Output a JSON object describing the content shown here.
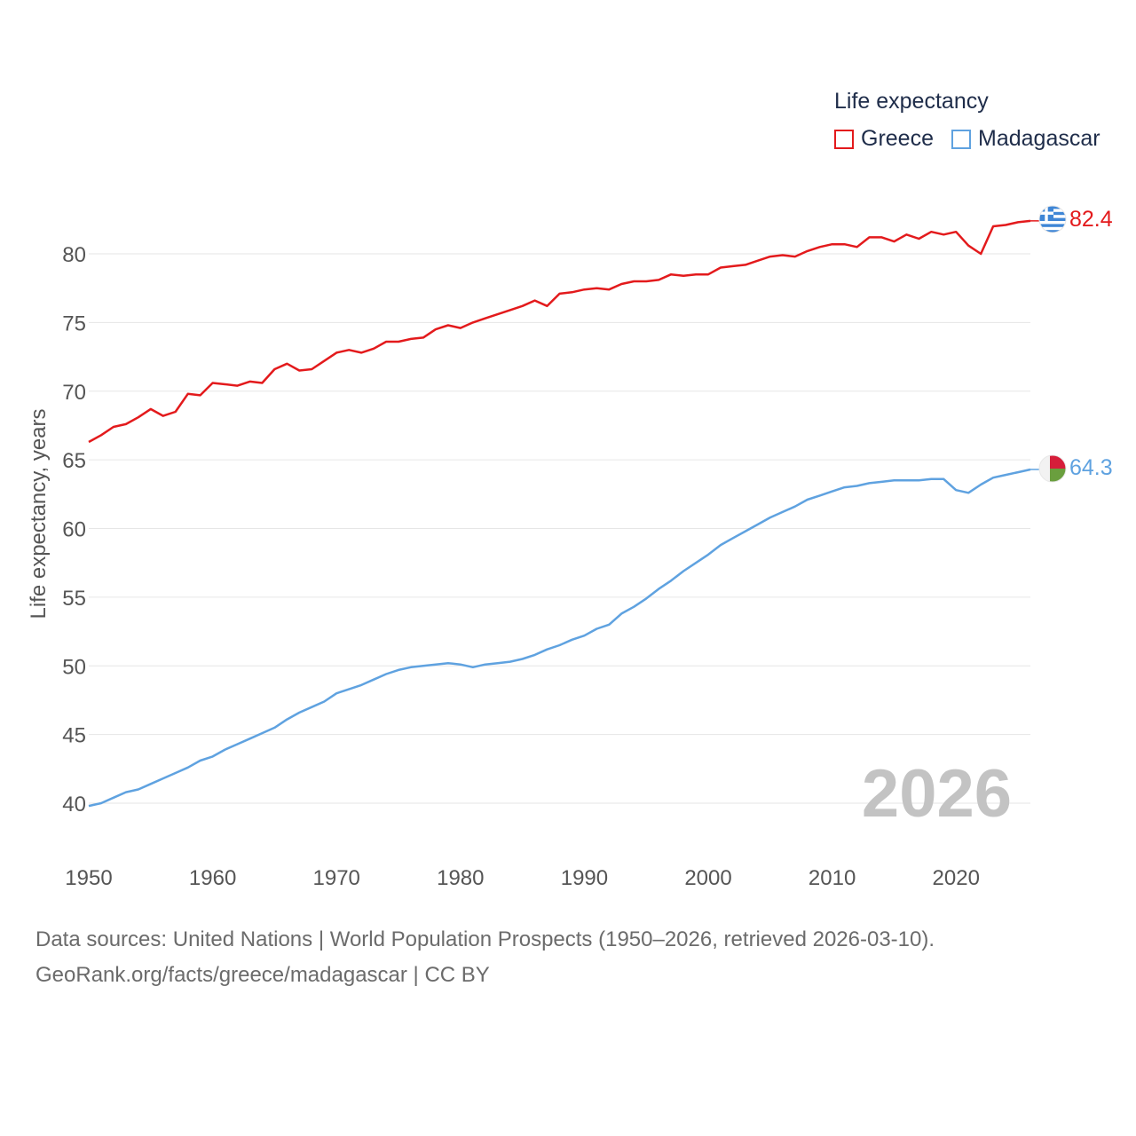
{
  "legend": {
    "title": "Life expectancy",
    "items": [
      {
        "label": "Greece",
        "color": "#e31a1c"
      },
      {
        "label": "Madagascar",
        "color": "#5fa2e0"
      }
    ]
  },
  "footer": {
    "line1": "Data sources: United Nations | World Population Prospects (1950–2026, retrieved 2026-03-10).",
    "line2": "GeoRank.org/facts/greece/madagascar | CC BY"
  },
  "chart_data": {
    "type": "line",
    "title": "Life expectancy",
    "xlabel": "",
    "ylabel": "Life expectancy, years",
    "year_watermark": "2026",
    "xlim": [
      1950,
      2026
    ],
    "ylim": [
      40,
      82.4
    ],
    "x_ticks": [
      "1950",
      "1960",
      "1970",
      "1980",
      "1990",
      "2000",
      "2010",
      "2020"
    ],
    "y_ticks": [
      "40",
      "45",
      "50",
      "55",
      "60",
      "65",
      "70",
      "75",
      "80"
    ],
    "grid": true,
    "legend_position": "top-right",
    "x": [
      1950,
      1951,
      1952,
      1953,
      1954,
      1955,
      1956,
      1957,
      1958,
      1959,
      1960,
      1961,
      1962,
      1963,
      1964,
      1965,
      1966,
      1967,
      1968,
      1969,
      1970,
      1971,
      1972,
      1973,
      1974,
      1975,
      1976,
      1977,
      1978,
      1979,
      1980,
      1981,
      1982,
      1983,
      1984,
      1985,
      1986,
      1987,
      1988,
      1989,
      1990,
      1991,
      1992,
      1993,
      1994,
      1995,
      1996,
      1997,
      1998,
      1999,
      2000,
      2001,
      2002,
      2003,
      2004,
      2005,
      2006,
      2007,
      2008,
      2009,
      2010,
      2011,
      2012,
      2013,
      2014,
      2015,
      2016,
      2017,
      2018,
      2019,
      2020,
      2021,
      2022,
      2023,
      2024,
      2025,
      2026
    ],
    "series": [
      {
        "name": "Greece",
        "color": "#e31a1c",
        "end_label": "82.4",
        "flag": "greece",
        "values": [
          66.3,
          66.8,
          67.4,
          67.6,
          68.1,
          68.7,
          68.2,
          68.5,
          69.8,
          69.7,
          70.6,
          70.5,
          70.4,
          70.7,
          70.6,
          71.6,
          72.0,
          71.5,
          71.6,
          72.2,
          72.8,
          73.0,
          72.8,
          73.1,
          73.6,
          73.6,
          73.8,
          73.9,
          74.5,
          74.8,
          74.6,
          75.0,
          75.3,
          75.6,
          75.9,
          76.2,
          76.6,
          76.2,
          77.1,
          77.2,
          77.4,
          77.5,
          77.4,
          77.8,
          78.0,
          78.0,
          78.1,
          78.5,
          78.4,
          78.5,
          78.5,
          79.0,
          79.1,
          79.2,
          79.5,
          79.8,
          79.9,
          79.8,
          80.2,
          80.5,
          80.7,
          80.7,
          80.5,
          81.2,
          81.2,
          80.9,
          81.4,
          81.1,
          81.6,
          81.4,
          81.6,
          80.6,
          80.0,
          82.0,
          82.1,
          82.3,
          82.4
        ]
      },
      {
        "name": "Madagascar",
        "color": "#5fa2e0",
        "end_label": "64.3",
        "flag": "madagascar",
        "values": [
          39.8,
          40.0,
          40.4,
          40.8,
          41.0,
          41.4,
          41.8,
          42.2,
          42.6,
          43.1,
          43.4,
          43.9,
          44.3,
          44.7,
          45.1,
          45.5,
          46.1,
          46.6,
          47.0,
          47.4,
          48.0,
          48.3,
          48.6,
          49.0,
          49.4,
          49.7,
          49.9,
          50.0,
          50.1,
          50.2,
          50.1,
          49.9,
          50.1,
          50.2,
          50.3,
          50.5,
          50.8,
          51.2,
          51.5,
          51.9,
          52.2,
          52.7,
          53.0,
          53.8,
          54.3,
          54.9,
          55.6,
          56.2,
          56.9,
          57.5,
          58.1,
          58.8,
          59.3,
          59.8,
          60.3,
          60.8,
          61.2,
          61.6,
          62.1,
          62.4,
          62.7,
          63.0,
          63.1,
          63.3,
          63.4,
          63.5,
          63.5,
          63.5,
          63.6,
          63.6,
          62.8,
          62.6,
          63.2,
          63.7,
          63.9,
          64.1,
          64.3
        ]
      }
    ]
  }
}
